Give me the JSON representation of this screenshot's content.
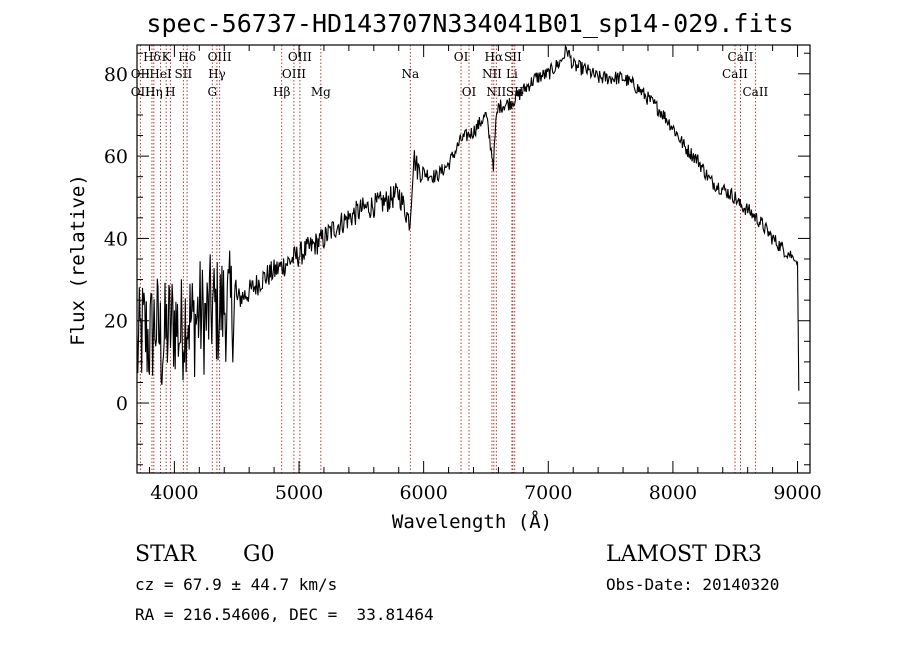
{
  "chart_data": {
    "type": "line",
    "title": "spec-56737-HD143707N334041B01_sp14-029.fits",
    "xlabel": "Wavelength (Å)",
    "ylabel": "Flux (relative)",
    "xlim": [
      3700,
      9100
    ],
    "ylim": [
      -17,
      87
    ],
    "xticks": [
      4000,
      5000,
      6000,
      7000,
      8000,
      9000
    ],
    "yticks": [
      0,
      20,
      40,
      60,
      80
    ],
    "xtick_labels": [
      "4000",
      "5000",
      "6000",
      "7000",
      "8000",
      "9000"
    ],
    "ytick_labels": [
      "0",
      "20",
      "40",
      "60",
      "80"
    ],
    "series": [
      {
        "name": "spectrum",
        "x": [
          3700,
          3750,
          3800,
          3850,
          3900,
          3950,
          4000,
          4050,
          4100,
          4150,
          4200,
          4250,
          4300,
          4350,
          4400,
          4450,
          4500,
          4600,
          4700,
          4800,
          4900,
          5000,
          5100,
          5200,
          5300,
          5400,
          5500,
          5600,
          5700,
          5800,
          5890,
          5920,
          5950,
          6000,
          6100,
          6200,
          6300,
          6400,
          6500,
          6560,
          6580,
          6600,
          6700,
          6800,
          6900,
          7000,
          7100,
          7150,
          7200,
          7300,
          7400,
          7500,
          7600,
          7700,
          7800,
          7900,
          8000,
          8100,
          8200,
          8300,
          8400,
          8500,
          8540,
          8600,
          8700,
          8800,
          8900,
          8950,
          9000,
          9010
        ],
        "y": [
          12,
          18,
          15,
          20,
          14,
          18,
          20,
          17,
          22,
          19,
          22,
          20,
          23,
          22,
          24,
          23,
          25,
          27,
          30,
          32,
          34,
          36,
          38,
          40,
          43,
          45,
          47,
          48,
          49,
          51,
          44,
          60,
          57,
          56,
          55,
          58,
          64,
          66,
          70,
          58,
          68,
          72,
          73,
          76,
          79,
          80,
          83,
          86,
          82,
          81,
          79,
          79,
          79,
          77,
          74,
          71,
          67,
          62,
          59,
          54,
          52,
          50,
          48,
          47,
          44,
          40,
          37,
          36,
          34,
          3
        ]
      }
    ],
    "spectral_lines": {
      "top_row": [
        {
          "label": "Hδ",
          "x": 3820
        },
        {
          "label": "K",
          "x": 3934
        },
        {
          "label": "Hδ",
          "x": 4102
        },
        {
          "label": "OIII",
          "x": 4363
        },
        {
          "label": "OIII",
          "x": 5007
        },
        {
          "label": "OI",
          "x": 6300
        },
        {
          "label": "Hα",
          "x": 6563
        },
        {
          "label": "SII",
          "x": 6716
        },
        {
          "label": "CaII",
          "x": 8542
        }
      ],
      "middle_row": [
        {
          "label": "OII",
          "x": 3727
        },
        {
          "label": "HeI",
          "x": 3889
        },
        {
          "label": "SII",
          "x": 4072
        },
        {
          "label": "Hγ",
          "x": 4341
        },
        {
          "label": "OIII",
          "x": 4959
        },
        {
          "label": "Na",
          "x": 5893
        },
        {
          "label": "NII",
          "x": 6548
        },
        {
          "label": "Li",
          "x": 6708
        },
        {
          "label": "CaII",
          "x": 8498
        }
      ],
      "bottom_row": [
        {
          "label": "OII",
          "x": 3727
        },
        {
          "label": "Hη",
          "x": 3835
        },
        {
          "label": "H",
          "x": 3968
        },
        {
          "label": "G",
          "x": 4304
        },
        {
          "label": "Hβ",
          "x": 4861
        },
        {
          "label": "Mg",
          "x": 5175
        },
        {
          "label": "OI",
          "x": 6364
        },
        {
          "label": "NII",
          "x": 6583
        },
        {
          "label": "SII",
          "x": 6731
        },
        {
          "label": "CaII",
          "x": 8662
        }
      ]
    }
  },
  "info": {
    "class_label": "STAR",
    "subclass_label": "G0",
    "survey": "LAMOST DR3",
    "cz": "cz = 67.9 ± 44.7 km/s",
    "obs_date": "Obs-Date: 20140320",
    "coords": "RA = 216.54606, DEC =  33.81464"
  },
  "colors": {
    "spectrum": "#000000",
    "line_markers": "#b22222",
    "axes": "#000000"
  }
}
